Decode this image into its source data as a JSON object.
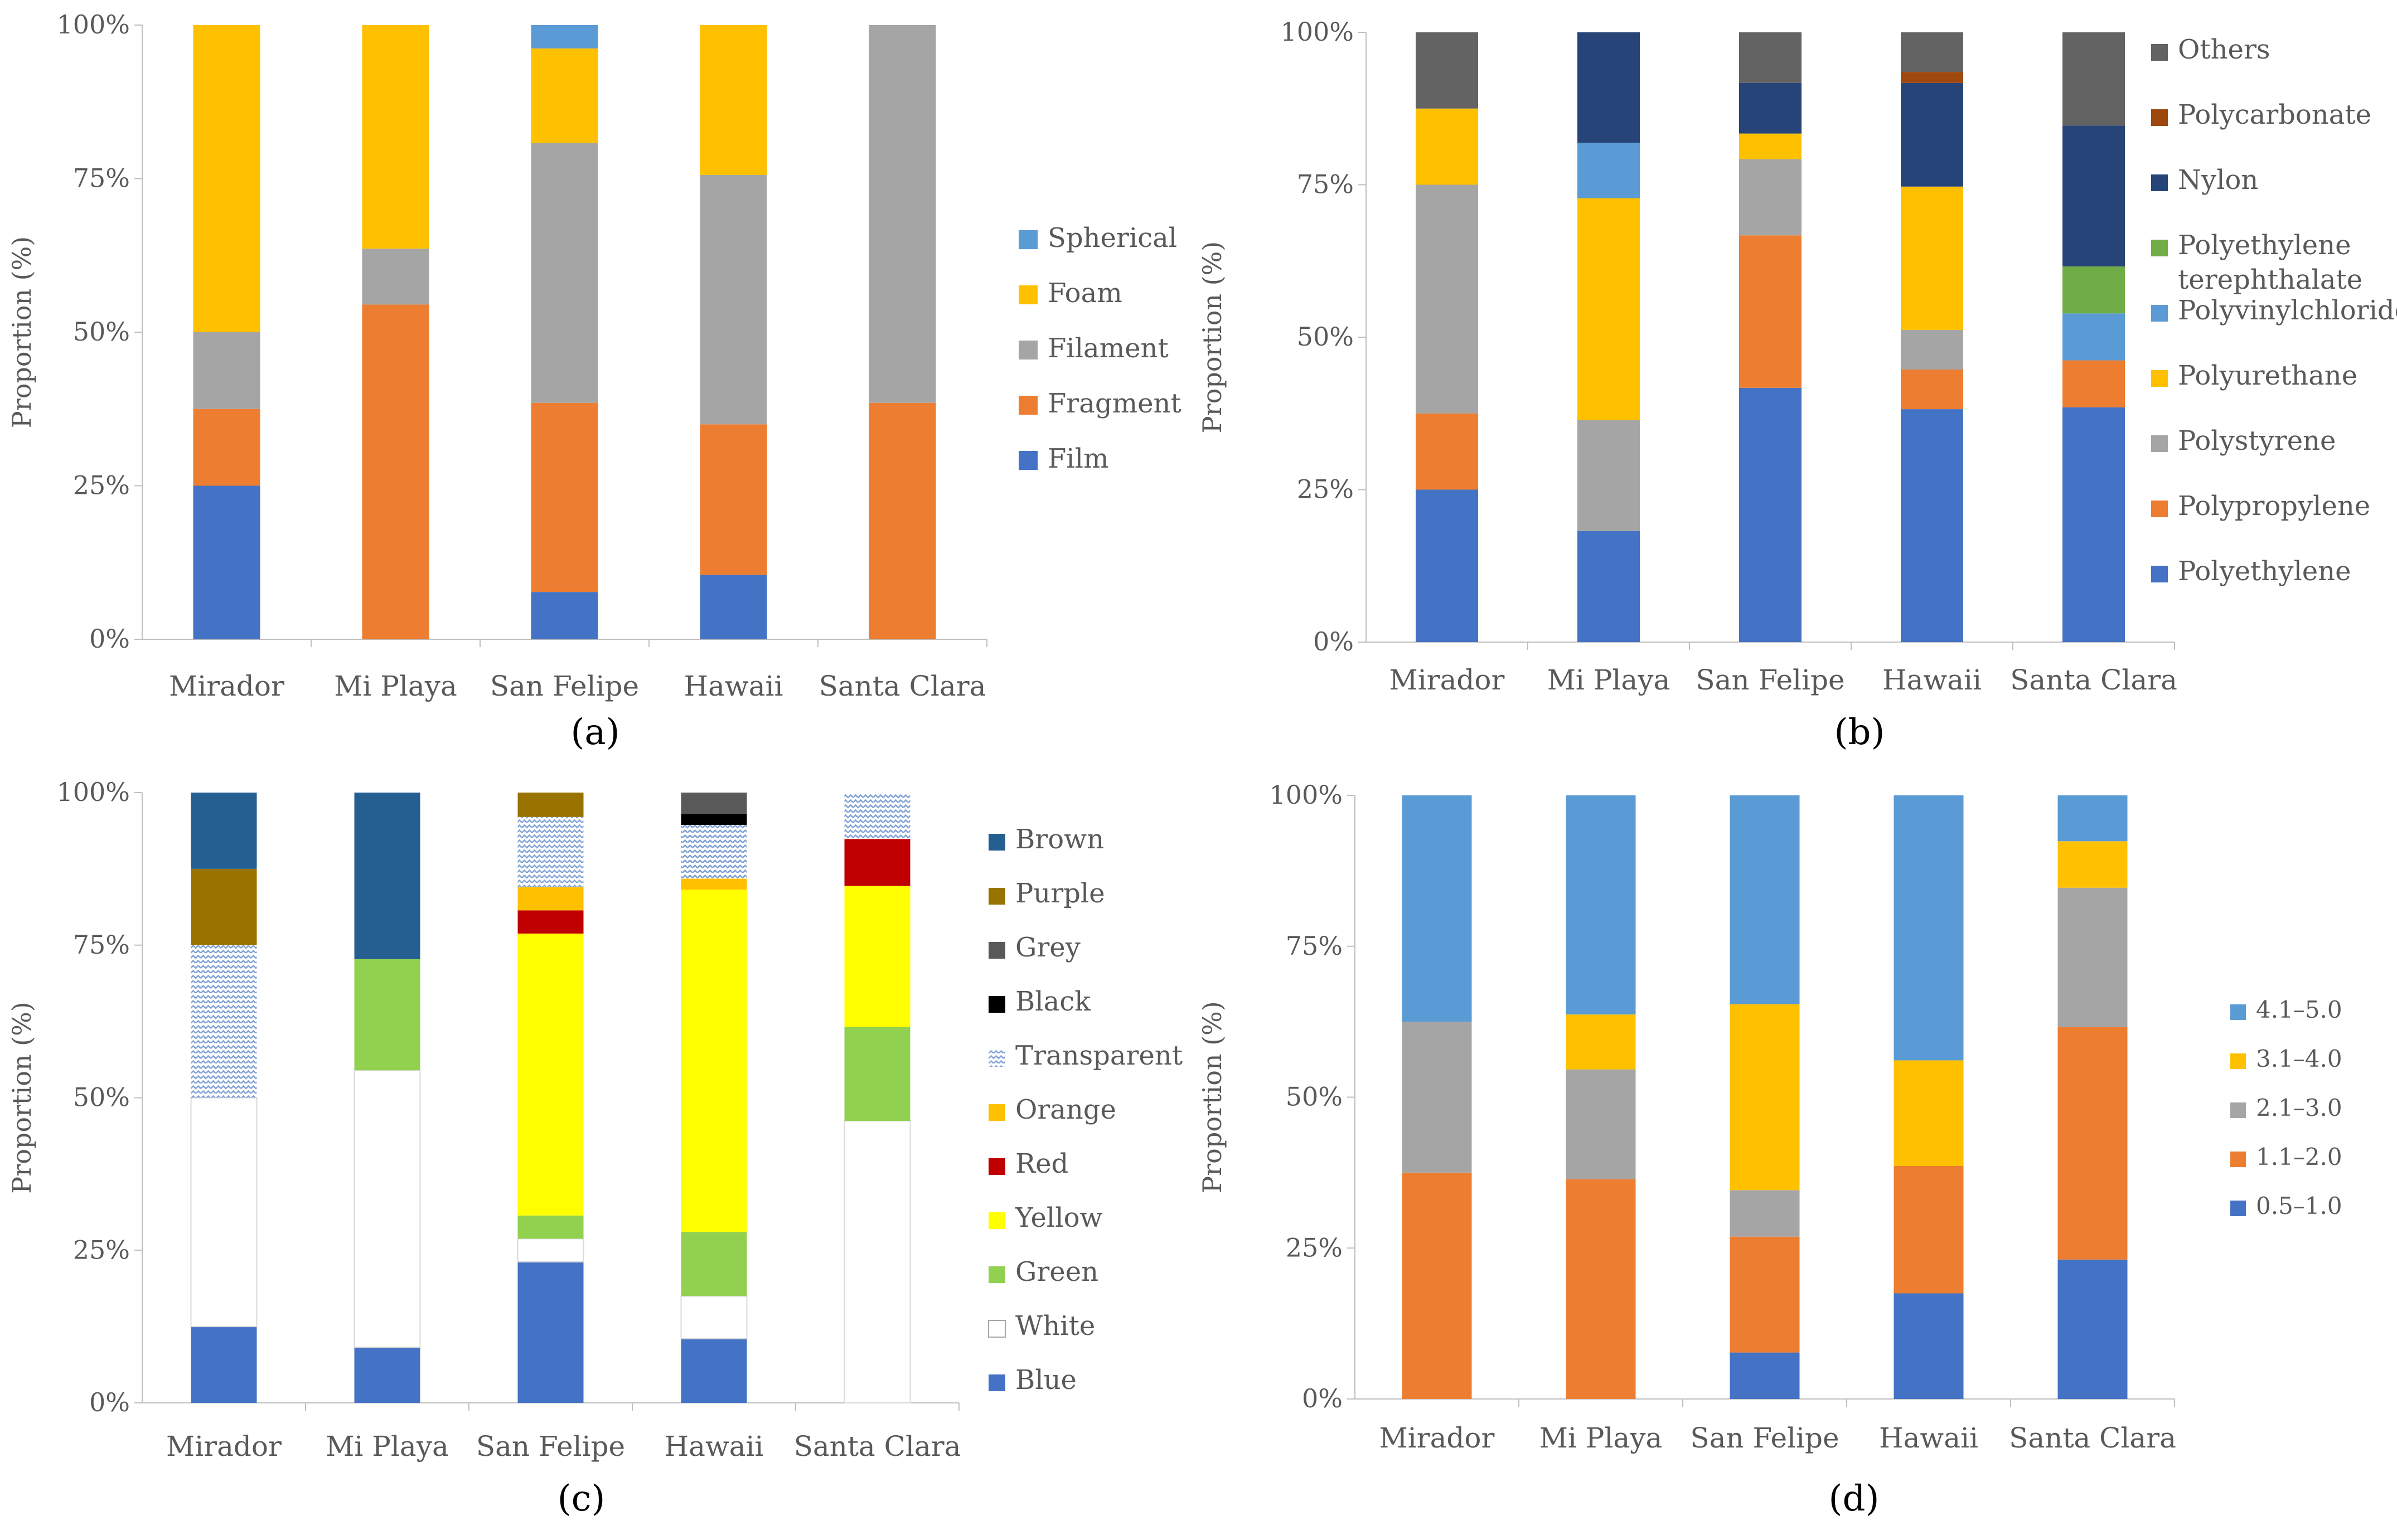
{
  "chart_data": [
    {
      "panel": "(a)",
      "type": "bar",
      "stacked": true,
      "ylabel": "Proportion (%)",
      "ylim": [
        0,
        100
      ],
      "yticks": [
        "0%",
        "25%",
        "50%",
        "75%",
        "100%"
      ],
      "categories": [
        "Mirador",
        "Mi Playa",
        "San Felipe",
        "Hawaii",
        "Santa Clara"
      ],
      "series": [
        {
          "name": "Film",
          "color": "#4472C4",
          "values": [
            25,
            0,
            7.7,
            10.5,
            0
          ]
        },
        {
          "name": "Fragment",
          "color": "#ED7D31",
          "values": [
            12.5,
            54.5,
            30.8,
            24.5,
            38.5
          ]
        },
        {
          "name": "Filament",
          "color": "#A5A5A5",
          "values": [
            12.5,
            9.1,
            42.3,
            40.6,
            61.5
          ]
        },
        {
          "name": "Foam",
          "color": "#FFC000",
          "values": [
            50,
            36.4,
            15.4,
            24.4,
            0
          ]
        },
        {
          "name": "Spherical",
          "color": "#5B9BD5",
          "values": [
            0,
            0,
            3.8,
            0,
            0
          ]
        }
      ],
      "legend_position": "right"
    },
    {
      "panel": "(b)",
      "type": "bar",
      "stacked": true,
      "ylabel": "Proportion (%)",
      "ylim": [
        0,
        100
      ],
      "yticks": [
        "0%",
        "25%",
        "50%",
        "75%",
        "100%"
      ],
      "categories": [
        "Mirador",
        "Mi Playa",
        "San Felipe",
        "Hawaii",
        "Santa Clara"
      ],
      "series": [
        {
          "name": "Polyethylene",
          "color": "#4472C4",
          "values": [
            25,
            18.2,
            41.7,
            38.2,
            38.5
          ]
        },
        {
          "name": "Polypropylene",
          "color": "#ED7D31",
          "values": [
            12.5,
            0,
            25,
            6.5,
            7.7
          ]
        },
        {
          "name": "Polystyrene",
          "color": "#A5A5A5",
          "values": [
            37.5,
            18.2,
            12.5,
            6.5,
            0
          ]
        },
        {
          "name": "Polyurethane",
          "color": "#FFC000",
          "values": [
            12.5,
            36.4,
            4.2,
            23.5,
            0
          ]
        },
        {
          "name": "Polyvinylchloride",
          "color": "#5B9BD5",
          "values": [
            0,
            9.1,
            0,
            0,
            7.7
          ]
        },
        {
          "name": "Polyethylene terephthalate",
          "color": "#70AD47",
          "values": [
            0,
            0,
            0,
            0,
            7.7
          ]
        },
        {
          "name": "Nylon",
          "color": "#264478",
          "values": [
            0,
            18.1,
            8.3,
            17.0,
            23.1
          ]
        },
        {
          "name": "Polycarbonate",
          "color": "#9E480E",
          "values": [
            0,
            0,
            0,
            1.8,
            0
          ]
        },
        {
          "name": "Others",
          "color": "#636363",
          "values": [
            12.5,
            0,
            8.3,
            6.5,
            15.3
          ]
        }
      ],
      "legend_position": "right"
    },
    {
      "panel": "(c)",
      "type": "bar",
      "stacked": true,
      "ylabel": "Proportion (%)",
      "ylim": [
        0,
        100
      ],
      "yticks": [
        "0%",
        "25%",
        "50%",
        "75%",
        "100%"
      ],
      "categories": [
        "Mirador",
        "Mi Playa",
        "San Felipe",
        "Hawaii",
        "Santa Clara"
      ],
      "series": [
        {
          "name": "Blue",
          "color": "#4472C4",
          "values": [
            12.5,
            9.1,
            23.1,
            10.5,
            0
          ]
        },
        {
          "name": "White",
          "color": "#FFFFFF",
          "values": [
            37.5,
            45.4,
            3.8,
            7.0,
            46.2
          ]
        },
        {
          "name": "Green",
          "color": "#92D050",
          "values": [
            0,
            18.2,
            3.8,
            10.5,
            15.4
          ]
        },
        {
          "name": "Yellow",
          "color": "#FFFF00",
          "values": [
            0,
            0,
            46.2,
            56.1,
            23.1
          ]
        },
        {
          "name": "Red",
          "color": "#C00000",
          "values": [
            0,
            0,
            3.8,
            0,
            7.7
          ]
        },
        {
          "name": "Orange",
          "color": "#FFC000",
          "values": [
            0,
            0,
            3.8,
            1.8,
            0
          ]
        },
        {
          "name": "Transparent",
          "color": "#DCE6F2",
          "pattern": true,
          "values": [
            25,
            0,
            11.5,
            8.8,
            7.6
          ]
        },
        {
          "name": "Black",
          "color": "#000000",
          "values": [
            0,
            0,
            0,
            1.8,
            0
          ]
        },
        {
          "name": "Grey",
          "color": "#595959",
          "values": [
            0,
            0,
            0,
            3.5,
            0
          ]
        },
        {
          "name": "Purple",
          "color": "#997300",
          "values": [
            12.5,
            0,
            4.0,
            0,
            0
          ]
        },
        {
          "name": "Brown",
          "color": "#255E91",
          "values": [
            12.5,
            27.3,
            0,
            0,
            0
          ]
        }
      ],
      "legend_position": "right"
    },
    {
      "panel": "(d)",
      "type": "bar",
      "stacked": true,
      "ylabel": "Proportion (%)",
      "ylim": [
        0,
        100
      ],
      "yticks": [
        "0%",
        "25%",
        "50%",
        "75%",
        "100%"
      ],
      "categories": [
        "Mirador",
        "Mi Playa",
        "San Felipe",
        "Hawaii",
        "Santa Clara"
      ],
      "series": [
        {
          "name": "0.5–1.0",
          "color": "#4472C4",
          "values": [
            0,
            0,
            7.7,
            17.5,
            23.1
          ]
        },
        {
          "name": "1.1–2.0",
          "color": "#ED7D31",
          "values": [
            37.5,
            36.4,
            19.2,
            21.1,
            38.5
          ]
        },
        {
          "name": "2.1–3.0",
          "color": "#A5A5A5",
          "values": [
            25,
            18.2,
            7.7,
            0,
            23.1
          ]
        },
        {
          "name": "3.1–4.0",
          "color": "#FFC000",
          "values": [
            0,
            9.1,
            30.8,
            17.5,
            7.7
          ]
        },
        {
          "name": "4.1–5.0",
          "color": "#5B9BD5",
          "values": [
            37.5,
            36.3,
            34.6,
            43.9,
            7.6
          ]
        }
      ],
      "legend_position": "right"
    }
  ]
}
